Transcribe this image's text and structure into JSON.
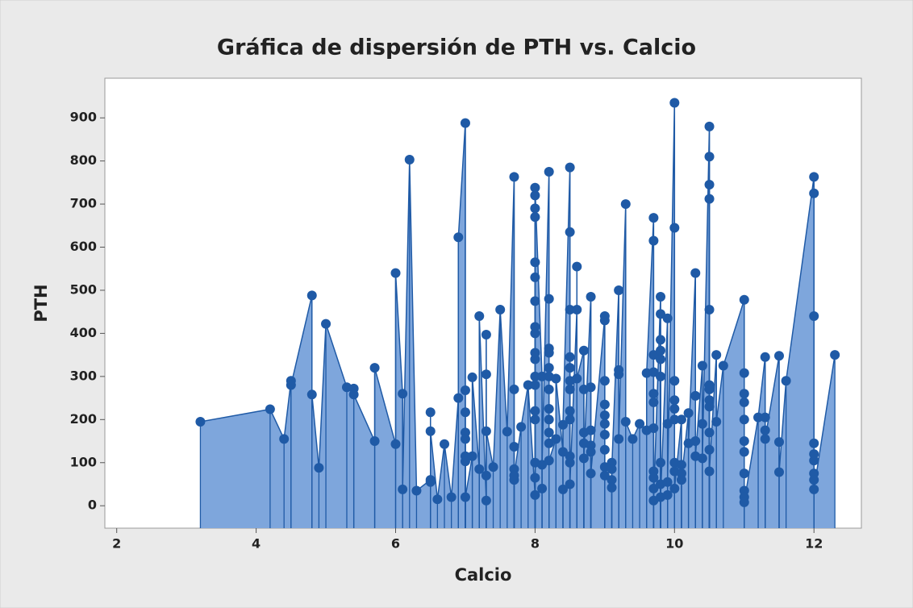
{
  "chart_data": {
    "type": "scatter",
    "title": "Gráfica de dispersión de PTH vs. Calcio",
    "x_label": "Calcio",
    "y_label": "PTH",
    "color": "#1f5aa6",
    "fill": "#7ea6dc",
    "xlim": [
      1.83,
      12.68
    ],
    "ylim": [
      -52,
      992
    ],
    "xticks": [
      2,
      4,
      6,
      8,
      10,
      12
    ],
    "yticks": [
      0,
      100,
      200,
      300,
      400,
      500,
      600,
      700,
      800,
      900
    ],
    "x": [
      3.2,
      4.2,
      4.4,
      4.5,
      4.5,
      4.8,
      4.8,
      4.9,
      5.0,
      5.3,
      5.4,
      5.4,
      5.7,
      5.7,
      6.0,
      6.0,
      6.1,
      6.1,
      6.2,
      6.3,
      6.5,
      6.5,
      6.5,
      6.5,
      6.6,
      6.7,
      6.8,
      6.9,
      6.9,
      7.0,
      7.0,
      7.0,
      7.0,
      7.0,
      7.0,
      7.0,
      7.0,
      7.1,
      7.1,
      7.2,
      7.2,
      7.3,
      7.3,
      7.3,
      7.3,
      7.3,
      7.4,
      7.5,
      7.6,
      7.7,
      7.7,
      7.7,
      7.7,
      7.7,
      7.7,
      7.8,
      7.9,
      8.0,
      8.0,
      8.0,
      8.0,
      8.0,
      8.0,
      8.0,
      8.0,
      8.0,
      8.0,
      8.0,
      8.0,
      8.0,
      8.0,
      8.0,
      8.0,
      8.0,
      8.0,
      8.1,
      8.1,
      8.1,
      8.2,
      8.2,
      8.2,
      8.2,
      8.2,
      8.2,
      8.2,
      8.2,
      8.2,
      8.2,
      8.2,
      8.2,
      8.3,
      8.3,
      8.4,
      8.4,
      8.4,
      8.5,
      8.5,
      8.5,
      8.5,
      8.5,
      8.5,
      8.5,
      8.5,
      8.5,
      8.5,
      8.5,
      8.5,
      8.6,
      8.6,
      8.6,
      8.7,
      8.7,
      8.7,
      8.7,
      8.7,
      8.8,
      8.8,
      8.8,
      8.8,
      8.8,
      8.8,
      9.0,
      9.0,
      9.0,
      9.0,
      9.0,
      9.0,
      9.0,
      9.0,
      9.0,
      9.0,
      9.1,
      9.1,
      9.1,
      9.1,
      9.2,
      9.2,
      9.2,
      9.2,
      9.3,
      9.3,
      9.4,
      9.5,
      9.6,
      9.6,
      9.7,
      9.7,
      9.7,
      9.7,
      9.7,
      9.7,
      9.7,
      9.7,
      9.7,
      9.7,
      9.7,
      9.8,
      9.8,
      9.8,
      9.8,
      9.8,
      9.8,
      9.8,
      9.8,
      9.8,
      9.9,
      9.9,
      9.9,
      9.9,
      10.0,
      10.0,
      10.0,
      10.0,
      10.0,
      10.0,
      10.0,
      10.0,
      10.0,
      10.1,
      10.1,
      10.1,
      10.1,
      10.2,
      10.2,
      10.3,
      10.3,
      10.3,
      10.3,
      10.4,
      10.4,
      10.4,
      10.5,
      10.5,
      10.5,
      10.5,
      10.5,
      10.5,
      10.5,
      10.5,
      10.5,
      10.5,
      10.5,
      10.5,
      10.6,
      10.6,
      10.7,
      11.0,
      11.0,
      11.0,
      11.0,
      11.0,
      11.0,
      11.0,
      11.0,
      11.0,
      11.0,
      11.0,
      11.2,
      11.3,
      11.3,
      11.3,
      11.3,
      11.5,
      11.5,
      11.5,
      11.6,
      12.0,
      12.0,
      12.0,
      12.0,
      12.0,
      12.0,
      12.0,
      12.0,
      12.0,
      12.3
    ],
    "values": [
      195,
      224,
      155,
      290,
      280,
      488,
      258,
      88,
      422,
      275,
      272,
      258,
      150,
      320,
      143,
      540,
      260,
      38,
      803,
      35,
      60,
      55,
      217,
      173,
      15,
      143,
      20,
      250,
      623,
      888,
      268,
      217,
      170,
      155,
      115,
      103,
      20,
      115,
      298,
      85,
      440,
      12,
      70,
      305,
      397,
      173,
      90,
      455,
      172,
      763,
      270,
      137,
      85,
      60,
      70,
      183,
      280,
      25,
      65,
      100,
      200,
      220,
      280,
      300,
      340,
      355,
      400,
      415,
      475,
      530,
      565,
      670,
      690,
      720,
      738,
      300,
      40,
      95,
      775,
      480,
      365,
      355,
      320,
      300,
      270,
      225,
      200,
      170,
      145,
      105,
      155,
      295,
      125,
      38,
      188,
      785,
      635,
      455,
      345,
      320,
      290,
      270,
      220,
      200,
      115,
      100,
      50,
      455,
      555,
      295,
      360,
      270,
      170,
      145,
      110,
      485,
      275,
      175,
      140,
      125,
      75,
      440,
      430,
      290,
      235,
      210,
      190,
      165,
      130,
      90,
      70,
      60,
      42,
      100,
      85,
      500,
      315,
      305,
      155,
      700,
      195,
      155,
      190,
      175,
      308,
      668,
      615,
      350,
      310,
      260,
      240,
      180,
      80,
      65,
      40,
      12,
      485,
      445,
      385,
      360,
      340,
      300,
      100,
      50,
      20,
      435,
      190,
      25,
      55,
      935,
      645,
      290,
      245,
      225,
      200,
      100,
      80,
      40,
      200,
      95,
      75,
      60,
      215,
      145,
      540,
      255,
      150,
      115,
      325,
      190,
      110,
      880,
      810,
      745,
      712,
      455,
      280,
      270,
      245,
      230,
      170,
      130,
      80,
      350,
      195,
      325,
      478,
      308,
      260,
      240,
      200,
      150,
      125,
      75,
      35,
      20,
      8,
      205,
      345,
      205,
      175,
      155,
      348,
      148,
      78,
      290,
      763,
      725,
      440,
      145,
      120,
      105,
      75,
      60,
      38,
      350
    ]
  }
}
